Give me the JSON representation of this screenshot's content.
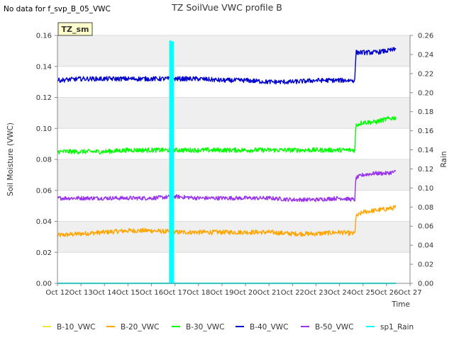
{
  "notice": "No data for f_svp_B_05_VWC",
  "chart_data": {
    "type": "line",
    "title": "TZ SoilVue VWC profile B",
    "badge": "TZ_sm",
    "xlabel": "Time",
    "ylabel": "Soil Moisture (VWC)",
    "y2label": "Rain",
    "xlim": [
      12,
      27
    ],
    "ylim": [
      0,
      0.16
    ],
    "y2lim": [
      0,
      0.26
    ],
    "x_ticks": [
      "Oct 12",
      "Oct 13",
      "Oct 14",
      "Oct 15",
      "Oct 16",
      "Oct 17",
      "Oct 18",
      "Oct 19",
      "Oct 20",
      "Oct 21",
      "Oct 22",
      "Oct 23",
      "Oct 24",
      "Oct 25",
      "Oct 26",
      "Oct 27"
    ],
    "y_ticks": [
      "0.00",
      "0.02",
      "0.04",
      "0.06",
      "0.08",
      "0.10",
      "0.12",
      "0.14",
      "0.16"
    ],
    "y2_ticks": [
      "0.00",
      "0.02",
      "0.04",
      "0.06",
      "0.08",
      "0.10",
      "0.12",
      "0.14",
      "0.16",
      "0.18",
      "0.20",
      "0.22",
      "0.24",
      "0.26"
    ],
    "grid": true,
    "legend_position": "bottom",
    "series": [
      {
        "name": "B-10_VWC",
        "color": "#f0e840",
        "axis": "left",
        "x": [
          12.0,
          26.4
        ],
        "values": [
          0.0,
          0.0
        ]
      },
      {
        "name": "B-20_VWC",
        "color": "#ffa500",
        "axis": "left",
        "noise": 0.0015,
        "x": [
          12.0,
          13.0,
          14.0,
          15.0,
          16.0,
          17.0,
          18.0,
          19.0,
          20.0,
          21.0,
          22.0,
          23.0,
          24.0,
          24.65,
          24.7,
          25.0,
          25.5,
          26.0,
          26.4
        ],
        "values": [
          0.031,
          0.032,
          0.033,
          0.034,
          0.034,
          0.033,
          0.033,
          0.033,
          0.033,
          0.033,
          0.032,
          0.032,
          0.033,
          0.032,
          0.043,
          0.046,
          0.047,
          0.048,
          0.049
        ]
      },
      {
        "name": "B-30_VWC",
        "color": "#00ff00",
        "axis": "left",
        "noise": 0.0015,
        "x": [
          12.0,
          13.0,
          14.0,
          15.0,
          16.0,
          17.0,
          18.0,
          19.0,
          20.0,
          21.0,
          22.0,
          23.0,
          24.0,
          24.65,
          24.7,
          25.0,
          25.5,
          26.0,
          26.4
        ],
        "values": [
          0.085,
          0.085,
          0.085,
          0.086,
          0.086,
          0.086,
          0.086,
          0.086,
          0.086,
          0.086,
          0.086,
          0.086,
          0.086,
          0.086,
          0.102,
          0.104,
          0.104,
          0.106,
          0.107
        ]
      },
      {
        "name": "B-40_VWC",
        "color": "#0000cc",
        "axis": "left",
        "noise": 0.0015,
        "x": [
          12.0,
          13.0,
          14.0,
          15.0,
          16.0,
          17.0,
          18.0,
          19.0,
          20.0,
          21.0,
          22.0,
          23.0,
          24.0,
          24.65,
          24.7,
          25.0,
          25.5,
          26.0,
          26.4
        ],
        "values": [
          0.131,
          0.132,
          0.132,
          0.132,
          0.132,
          0.132,
          0.132,
          0.131,
          0.131,
          0.13,
          0.13,
          0.131,
          0.131,
          0.131,
          0.149,
          0.149,
          0.149,
          0.15,
          0.151
        ]
      },
      {
        "name": "B-50_VWC",
        "color": "#9933ee",
        "axis": "left",
        "noise": 0.0013,
        "x": [
          12.0,
          13.0,
          14.0,
          15.0,
          16.0,
          17.0,
          18.0,
          19.0,
          20.0,
          21.0,
          22.0,
          23.0,
          24.0,
          24.65,
          24.7,
          25.0,
          25.5,
          26.0,
          26.4
        ],
        "values": [
          0.055,
          0.055,
          0.055,
          0.055,
          0.055,
          0.056,
          0.055,
          0.055,
          0.055,
          0.055,
          0.054,
          0.054,
          0.055,
          0.054,
          0.068,
          0.07,
          0.071,
          0.071,
          0.072
        ]
      },
      {
        "name": "sp1_Rain",
        "color": "#00ffff",
        "axis": "right",
        "x": [
          12.0,
          16.78,
          16.79,
          16.82,
          16.83,
          16.87,
          16.88,
          16.92,
          16.93,
          26.4
        ],
        "values": [
          0.0,
          0.0,
          0.254,
          0.254,
          0.0,
          0.0,
          0.253,
          0.253,
          0.0,
          0.0
        ]
      }
    ]
  }
}
